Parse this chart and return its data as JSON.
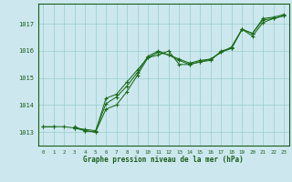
{
  "xlabel": "Graphe pression niveau de la mer (hPa)",
  "hours": [
    0,
    1,
    2,
    3,
    4,
    5,
    6,
    7,
    8,
    9,
    10,
    11,
    12,
    13,
    14,
    15,
    16,
    17,
    18,
    19,
    20,
    21,
    22,
    23
  ],
  "series1": [
    1013.2,
    1013.2,
    1013.2,
    1013.15,
    1013.1,
    1013.05,
    1014.05,
    1014.3,
    1014.7,
    1015.2,
    1015.8,
    1016.0,
    1015.85,
    1015.7,
    1015.55,
    1015.65,
    1015.7,
    1015.95,
    1016.1,
    1016.8,
    1016.65,
    1017.15,
    1017.2,
    1017.3
  ],
  "series2": [
    1013.2,
    1013.2,
    null,
    1013.15,
    1013.05,
    1013.0,
    1014.25,
    1014.4,
    1014.85,
    1015.3,
    1015.75,
    1015.95,
    1015.85,
    1015.65,
    1015.5,
    1015.6,
    1015.7,
    1015.95,
    1016.15,
    1016.8,
    1016.65,
    1017.2,
    1017.25,
    1017.35
  ],
  "series3": [
    null,
    null,
    null,
    1013.2,
    1013.05,
    1013.0,
    1013.85,
    1014.0,
    1014.5,
    1015.1,
    1015.75,
    1015.85,
    1016.0,
    1015.5,
    1015.5,
    1015.6,
    1015.65,
    1016.0,
    1016.1,
    1016.8,
    1016.55,
    1017.05,
    1017.2,
    1017.3
  ],
  "line_color": "#1a6b1a",
  "bg_color": "#cce8ee",
  "grid_color": "#99cccc",
  "axis_color": "#1a5c1a",
  "tick_color": "#1a5c1a",
  "ylim_min": 1012.5,
  "ylim_max": 1017.75,
  "xlim_min": -0.5,
  "xlim_max": 23.5,
  "yticks": [
    1013,
    1014,
    1015,
    1016,
    1017
  ],
  "xtick_labels": [
    "0",
    "1",
    "2",
    "3",
    "4",
    "5",
    "6",
    "7",
    "8",
    "9",
    "10",
    "11",
    "12",
    "13",
    "14",
    "15",
    "16",
    "17",
    "18",
    "19",
    "20",
    "21",
    "22",
    "23"
  ]
}
